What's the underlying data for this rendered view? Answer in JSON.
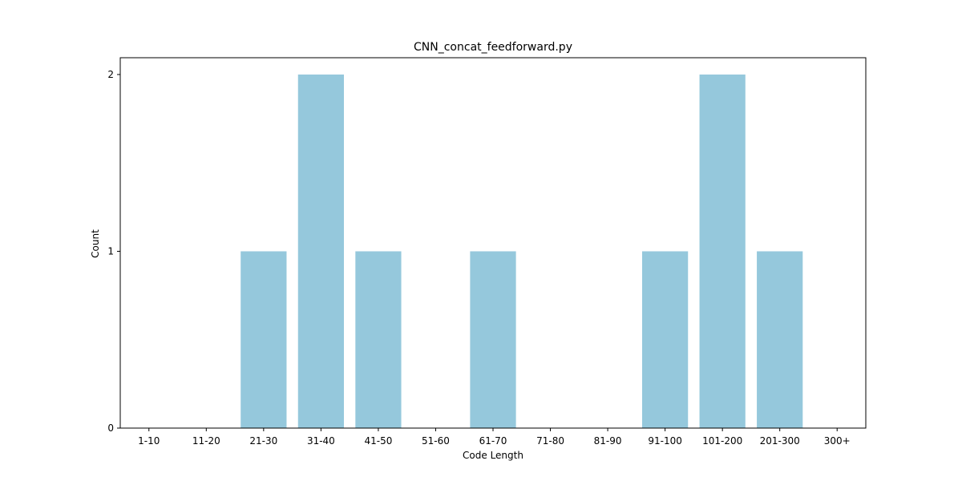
{
  "chart_data": {
    "type": "bar",
    "title": "CNN_concat_feedforward.py",
    "xlabel": "Code Length",
    "ylabel": "Count",
    "categories": [
      "1-10",
      "11-20",
      "21-30",
      "31-40",
      "41-50",
      "51-60",
      "61-70",
      "71-80",
      "81-90",
      "91-100",
      "101-200",
      "201-300",
      "300+"
    ],
    "values": [
      0,
      0,
      1,
      2,
      1,
      0,
      1,
      0,
      0,
      1,
      2,
      1,
      0
    ],
    "yticks": [
      "0",
      "1",
      "2"
    ],
    "ylim": [
      0,
      2.095
    ],
    "grid": false,
    "bar_color": "#95c8dc",
    "frame_color": "#000000"
  }
}
